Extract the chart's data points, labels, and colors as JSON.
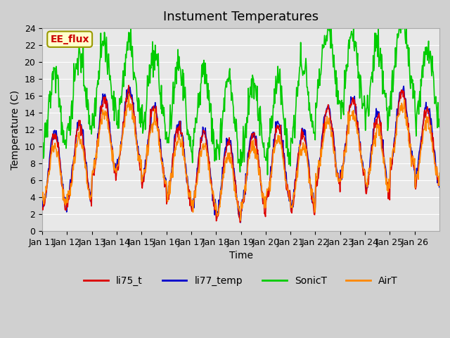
{
  "title": "Instument Temperatures",
  "xlabel": "Time",
  "ylabel": "Temperature (C)",
  "ylim": [
    0,
    24
  ],
  "yticks": [
    0,
    2,
    4,
    6,
    8,
    10,
    12,
    14,
    16,
    18,
    20,
    22,
    24
  ],
  "xtick_labels": [
    "Jan 11",
    "Jan 12",
    "Jan 13",
    "Jan 14",
    "Jan 15",
    "Jan 16",
    "Jan 17",
    "Jan 18",
    "Jan 19",
    "Jan 20",
    "Jan 21",
    "Jan 22",
    "Jan 23",
    "Jan 24",
    "Jan 25",
    "Jan 26"
  ],
  "annotation": "EE_flux",
  "annotation_color": "#cc0000",
  "annotation_bg": "#ffffcc",
  "line_colors": {
    "li75_t": "#dd0000",
    "li77_temp": "#0000cc",
    "SonicT": "#00cc00",
    "AirT": "#ff8800"
  },
  "line_width": 1.2,
  "plot_bg": "#e8e8e8",
  "fig_bg": "#d0d0d0",
  "grid_color": "#ffffff",
  "title_fontsize": 13,
  "label_fontsize": 10,
  "tick_fontsize": 9
}
